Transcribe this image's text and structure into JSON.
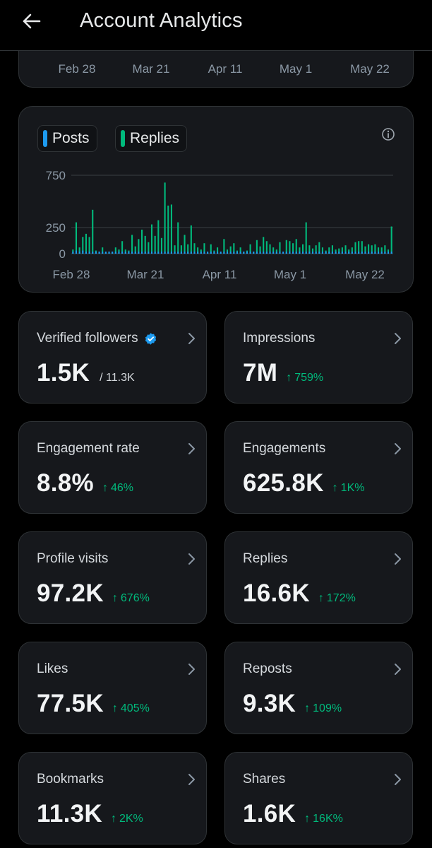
{
  "header": {
    "title": "Account Analytics",
    "back_icon": "arrow-left-icon"
  },
  "top_chart": {
    "x_ticks": [
      "Feb 28",
      "Mar 21",
      "Apr 11",
      "May 1",
      "May 22"
    ]
  },
  "chart_data": {
    "type": "bar",
    "legend": [
      "Posts",
      "Replies"
    ],
    "colors": {
      "Posts": "#1d9bf0",
      "Replies": "#00ba7c"
    },
    "y_ticks": [
      "750",
      "250",
      "0"
    ],
    "ylim": [
      0,
      750
    ],
    "x_ticks": [
      "Feb 28",
      "Mar 21",
      "Apr 11",
      "May 1",
      "May 22"
    ],
    "grid": true,
    "series": [
      {
        "name": "Posts",
        "values": [
          20,
          30,
          20,
          30,
          20,
          20,
          20,
          20,
          20,
          20,
          20,
          20,
          20,
          20,
          20,
          20,
          20,
          20,
          20,
          20,
          20,
          20,
          20,
          20,
          20,
          20,
          20,
          20,
          20,
          20,
          20,
          20,
          20,
          20,
          20,
          20,
          20,
          20,
          20,
          20,
          20,
          20,
          20,
          20,
          20,
          20,
          20,
          20,
          20,
          20,
          20,
          20,
          20,
          20,
          20,
          20,
          20,
          20,
          20,
          20,
          20,
          20,
          20,
          20,
          20,
          20,
          20,
          20,
          20,
          20,
          20,
          20,
          20,
          20,
          20,
          20,
          20,
          20,
          20,
          20,
          20,
          20,
          20,
          20,
          20,
          20,
          20,
          20,
          20,
          20,
          20,
          20,
          20,
          20,
          20,
          20,
          20,
          20
        ]
      },
      {
        "name": "Replies",
        "values": [
          40,
          300,
          60,
          160,
          190,
          160,
          420,
          30,
          20,
          60,
          10,
          20,
          20,
          60,
          40,
          120,
          40,
          30,
          180,
          70,
          140,
          230,
          170,
          110,
          280,
          170,
          320,
          150,
          680,
          460,
          470,
          80,
          300,
          80,
          180,
          90,
          270,
          100,
          60,
          40,
          100,
          10,
          90,
          30,
          60,
          0,
          140,
          40,
          70,
          100,
          30,
          60,
          20,
          30,
          90,
          20,
          130,
          70,
          160,
          120,
          90,
          60,
          40,
          110,
          0,
          130,
          120,
          100,
          140,
          60,
          90,
          300,
          80,
          50,
          80,
          110,
          60,
          30,
          60,
          80,
          40,
          50,
          60,
          80,
          40,
          60,
          110,
          120,
          120,
          70,
          90,
          80,
          90,
          60,
          60,
          80,
          40,
          260
        ]
      }
    ]
  },
  "stats": [
    {
      "title": "Verified followers",
      "value": "1.5K",
      "sub": "/ 11.3K",
      "delta": "",
      "verified": true
    },
    {
      "title": "Impressions",
      "value": "7M",
      "sub": "",
      "delta": "759%"
    },
    {
      "title": "Engagement rate",
      "value": "8.8%",
      "sub": "",
      "delta": "46%"
    },
    {
      "title": "Engagements",
      "value": "625.8K",
      "sub": "",
      "delta": "1K%"
    },
    {
      "title": "Profile visits",
      "value": "97.2K",
      "sub": "",
      "delta": "676%"
    },
    {
      "title": "Replies",
      "value": "16.6K",
      "sub": "",
      "delta": "172%"
    },
    {
      "title": "Likes",
      "value": "77.5K",
      "sub": "",
      "delta": "405%"
    },
    {
      "title": "Reposts",
      "value": "9.3K",
      "sub": "",
      "delta": "109%"
    },
    {
      "title": "Bookmarks",
      "value": "11.3K",
      "sub": "",
      "delta": "2K%"
    },
    {
      "title": "Shares",
      "value": "1.6K",
      "sub": "",
      "delta": "16K%"
    }
  ],
  "delta_arrow": "↑"
}
